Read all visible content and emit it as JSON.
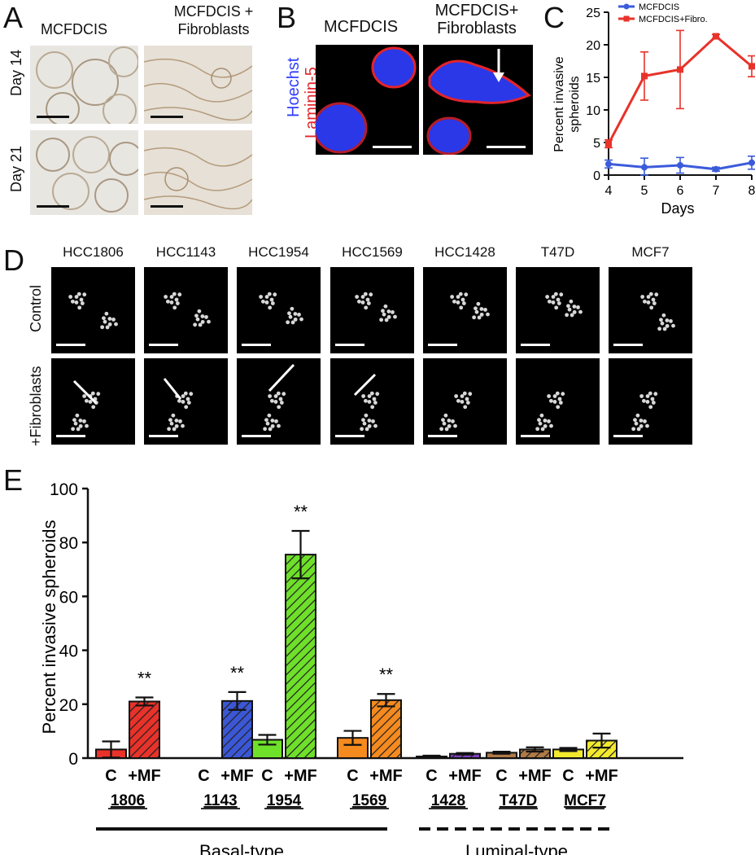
{
  "panel_a": {
    "letter": "A",
    "col_labels": [
      "MCFDCIS",
      "MCFDCIS +",
      "Fibroblasts"
    ],
    "row_labels": [
      "Day 14",
      "Day 21"
    ]
  },
  "panel_b": {
    "letter": "B",
    "col_labels": [
      "MCFDCIS",
      "MCFDCIS+",
      "Fibroblasts"
    ],
    "stain_labels": [
      "Hoechst",
      "Laminin-5"
    ],
    "colors": {
      "hoechst": "#2f3dff",
      "laminin": "#e3242b"
    }
  },
  "panel_c": {
    "letter": "C",
    "chart_data": {
      "type": "line",
      "x": [
        4,
        5,
        6,
        7,
        8
      ],
      "xlabel": "Days",
      "ylabel": [
        "Percent invasive",
        "spheroids"
      ],
      "ylim": [
        0,
        25
      ],
      "yticks": [
        0,
        5,
        10,
        15,
        20,
        25
      ],
      "legend_placement": "top-right",
      "series": [
        {
          "name": "MCFDCIS",
          "color": "#3b5bdb",
          "values": [
            1.7,
            1.2,
            1.5,
            0.9,
            1.9
          ],
          "err": [
            0.6,
            1.4,
            1.2,
            0.3,
            1.0
          ]
        },
        {
          "name": "MCFDCIS+Fibro.",
          "color": "#e8322a",
          "values": [
            4.8,
            15.2,
            16.2,
            21.3,
            16.7
          ],
          "err": [
            0.6,
            3.7,
            6.0,
            0.3,
            1.6
          ]
        }
      ]
    }
  },
  "panel_d": {
    "letter": "D",
    "columns": [
      "HCC1806",
      "HCC1143",
      "HCC1954",
      "HCC1569",
      "HCC1428",
      "T47D",
      "MCF7"
    ],
    "row_labels": [
      "Control",
      "+Fibroblasts"
    ]
  },
  "panel_e": {
    "letter": "E",
    "chart_data": {
      "type": "bar",
      "ylabel": "Percent invasive spheroids",
      "ylim": [
        0,
        100
      ],
      "yticks": [
        0,
        20,
        40,
        60,
        80,
        100
      ],
      "groups": [
        {
          "name": "1806",
          "color": "#e8322a",
          "control": 3.2,
          "control_err": 3.0,
          "mf": 21.0,
          "mf_err": 1.5,
          "sig": "**"
        },
        {
          "name": "1143",
          "color": "#3b57d6",
          "control": 0,
          "control_err": 0,
          "mf": 21.2,
          "mf_err": 3.3,
          "sig": "**"
        },
        {
          "name": "1954",
          "color": "#6ee02a",
          "control": 6.8,
          "control_err": 1.8,
          "mf": 75.5,
          "mf_err": 8.8,
          "sig": "**"
        },
        {
          "name": "1569",
          "color": "#f58a1f",
          "control": 7.5,
          "control_err": 2.6,
          "mf": 21.5,
          "mf_err": 2.3,
          "sig": "**"
        },
        {
          "name": "1428",
          "color": "#7e3fc0",
          "control": 0.6,
          "control_err": 0.3,
          "mf": 1.6,
          "mf_err": 0.3,
          "sig": ""
        },
        {
          "name": "T47D",
          "color": "#b07a45",
          "control": 2.0,
          "control_err": 0.4,
          "mf": 3.2,
          "mf_err": 0.8,
          "sig": ""
        },
        {
          "name": "MCF7",
          "color": "#f3ea2e",
          "control": 3.2,
          "control_err": 0.6,
          "mf": 6.5,
          "mf_err": 2.6,
          "sig": ""
        }
      ],
      "bar_labels": [
        "C",
        "+MF"
      ],
      "category_labels": [
        "Basal-type",
        "Luminal-type"
      ]
    }
  }
}
